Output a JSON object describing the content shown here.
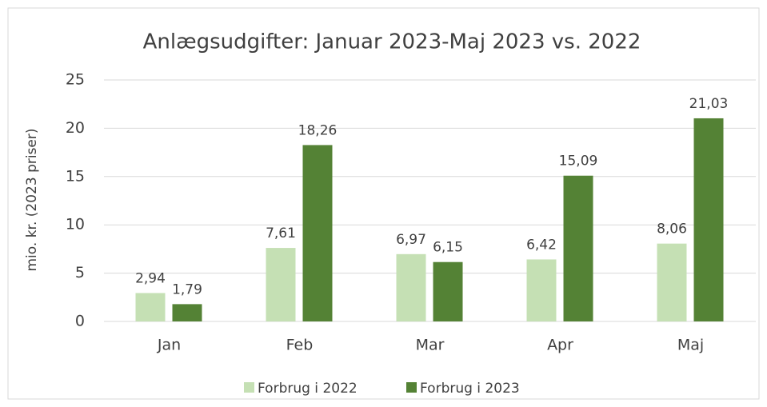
{
  "chart_data": {
    "type": "bar",
    "title": "Anlægsudgifter: Januar 2023-Maj 2023 vs. 2022",
    "ylabel": "mio. kr. (2023 priser)",
    "categories": [
      "Jan",
      "Feb",
      "Mar",
      "Apr",
      "Maj"
    ],
    "series": [
      {
        "name": "Forbrug i 2022",
        "color": "#c5e0b4",
        "values": [
          2.94,
          7.61,
          6.97,
          6.42,
          8.06
        ],
        "value_labels": [
          "2,94",
          "7,61",
          "6,97",
          "6,42",
          "8,06"
        ]
      },
      {
        "name": "Forbrug i 2023",
        "color": "#548235",
        "values": [
          1.79,
          18.26,
          6.15,
          15.09,
          21.03
        ],
        "value_labels": [
          "1,79",
          "18,26",
          "6,15",
          "15,09",
          "21,03"
        ]
      }
    ],
    "ylim": [
      0,
      25
    ],
    "yticks": [
      0,
      5,
      10,
      15,
      20,
      25
    ],
    "grid": true,
    "legend": "bottom"
  }
}
